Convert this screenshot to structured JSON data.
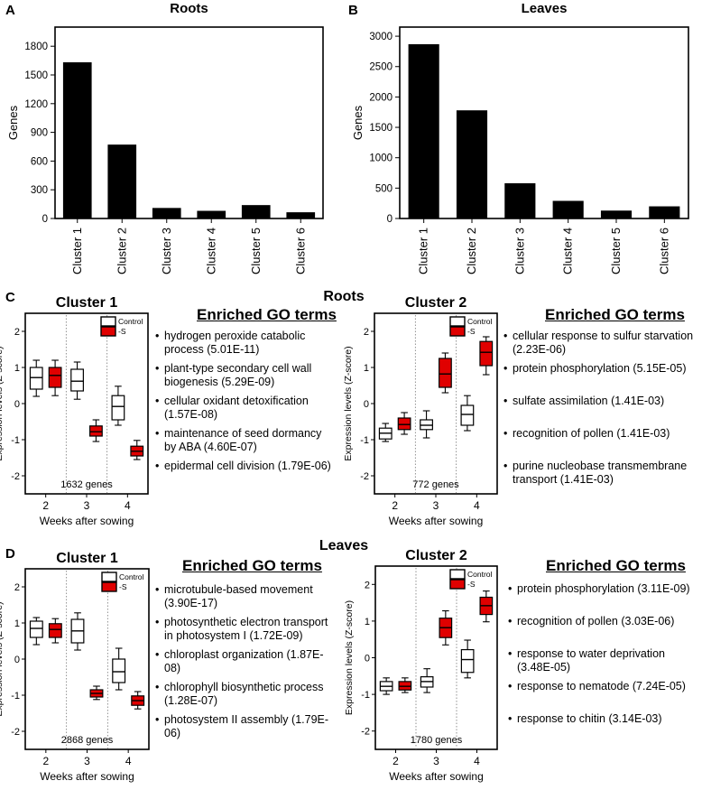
{
  "panels": {
    "A": {
      "letter": "A",
      "title": "Roots",
      "ylabel": "Genes"
    },
    "B": {
      "letter": "B",
      "title": "Leaves",
      "ylabel": "Genes"
    },
    "C": {
      "letter": "C",
      "section_title": "Roots"
    },
    "D": {
      "letter": "D",
      "section_title": "Leaves"
    }
  },
  "chart_data": [
    {
      "id": "A",
      "type": "bar",
      "title": "Roots",
      "ylabel": "Genes",
      "xlabel": "",
      "categories": [
        "Cluster 1",
        "Cluster 2",
        "Cluster 3",
        "Cluster 4",
        "Cluster 5",
        "Cluster 6"
      ],
      "values": [
        1632,
        772,
        110,
        80,
        140,
        65
      ],
      "ylim": [
        0,
        2000
      ],
      "yticks": [
        0,
        300,
        600,
        900,
        1200,
        1500,
        1800
      ]
    },
    {
      "id": "B",
      "type": "bar",
      "title": "Leaves",
      "ylabel": "Genes",
      "xlabel": "",
      "categories": [
        "Cluster 1",
        "Cluster 2",
        "Cluster 3",
        "Cluster 4",
        "Cluster 5",
        "Cluster 6"
      ],
      "values": [
        2868,
        1780,
        580,
        290,
        130,
        200
      ],
      "ylim": [
        0,
        3150
      ],
      "yticks": [
        0,
        500,
        1000,
        1500,
        2000,
        2500,
        3000
      ]
    },
    {
      "id": "C1",
      "type": "box",
      "title": "Cluster 1",
      "xlabel": "Weeks after sowing",
      "ylabel": "Expression levels (Z-score)",
      "ylim": [
        -2.5,
        2.5
      ],
      "yticks": [
        -2,
        -1,
        0,
        1,
        2
      ],
      "xticks": [
        "2",
        "3",
        "4"
      ],
      "note": "1632 genes",
      "legend": [
        "Control",
        "-S"
      ],
      "boxes": [
        {
          "week": "2",
          "group": "Control",
          "min": 0.2,
          "q1": 0.4,
          "median": 0.72,
          "q3": 1.0,
          "max": 1.2
        },
        {
          "week": "2",
          "group": "-S",
          "min": 0.22,
          "q1": 0.45,
          "median": 0.78,
          "q3": 1.0,
          "max": 1.2
        },
        {
          "week": "3",
          "group": "Control",
          "min": 0.12,
          "q1": 0.35,
          "median": 0.62,
          "q3": 0.95,
          "max": 1.15
        },
        {
          "week": "3",
          "group": "-S",
          "min": -1.05,
          "q1": -0.9,
          "median": -0.78,
          "q3": -0.62,
          "max": -0.45
        },
        {
          "week": "4",
          "group": "Control",
          "min": -0.6,
          "q1": -0.45,
          "median": -0.08,
          "q3": 0.22,
          "max": 0.48
        },
        {
          "week": "4",
          "group": "-S",
          "min": -1.55,
          "q1": -1.45,
          "median": -1.32,
          "q3": -1.18,
          "max": -1.02
        }
      ],
      "go_title": "Enriched GO terms",
      "go_terms": [
        "hydrogen peroxide catabolic process (5.01E-11)",
        "plant-type secondary cell wall biogenesis (5.29E-09)",
        "cellular oxidant detoxification (1.57E-08)",
        "maintenance of seed dormancy by ABA (4.60E-07)",
        "epidermal cell division (1.79E-06)"
      ]
    },
    {
      "id": "C2",
      "type": "box",
      "title": "Cluster 2",
      "xlabel": "Weeks after sowing",
      "ylabel": "Expression levels (Z-score)",
      "ylim": [
        -2.5,
        2.5
      ],
      "yticks": [
        -2,
        -1,
        0,
        1,
        2
      ],
      "xticks": [
        "2",
        "3",
        "4"
      ],
      "note": "772 genes",
      "legend": [
        "Control",
        "-S"
      ],
      "boxes": [
        {
          "week": "2",
          "group": "Control",
          "min": -1.05,
          "q1": -0.98,
          "median": -0.82,
          "q3": -0.68,
          "max": -0.55
        },
        {
          "week": "2",
          "group": "-S",
          "min": -0.85,
          "q1": -0.72,
          "median": -0.58,
          "q3": -0.4,
          "max": -0.25
        },
        {
          "week": "3",
          "group": "Control",
          "min": -0.95,
          "q1": -0.72,
          "median": -0.6,
          "q3": -0.45,
          "max": -0.2
        },
        {
          "week": "3",
          "group": "-S",
          "min": 0.3,
          "q1": 0.45,
          "median": 0.82,
          "q3": 1.25,
          "max": 1.4
        },
        {
          "week": "4",
          "group": "Control",
          "min": -0.75,
          "q1": -0.6,
          "median": -0.3,
          "q3": -0.05,
          "max": 0.22
        },
        {
          "week": "4",
          "group": "-S",
          "min": 0.8,
          "q1": 1.05,
          "median": 1.42,
          "q3": 1.72,
          "max": 1.85
        }
      ],
      "go_title": "Enriched GO terms",
      "go_terms": [
        "cellular response to sulfur starvation (2.23E-06)",
        "protein phosphorylation (5.15E-05)",
        "sulfate assimilation (1.41E-03)",
        "recognition of pollen (1.41E-03)",
        "purine nucleobase transmembrane transport (1.41E-03)"
      ]
    },
    {
      "id": "D1",
      "type": "box",
      "title": "Cluster 1",
      "xlabel": "Weeks after sowing",
      "ylabel": "Expression levels (Z-score)",
      "ylim": [
        -2.5,
        2.5
      ],
      "yticks": [
        -2,
        -1,
        0,
        1,
        2
      ],
      "xticks": [
        "2",
        "3",
        "4"
      ],
      "note": "2868 genes",
      "legend": [
        "Control",
        "-S"
      ],
      "boxes": [
        {
          "week": "2",
          "group": "Control",
          "min": 0.4,
          "q1": 0.6,
          "median": 0.85,
          "q3": 1.05,
          "max": 1.15
        },
        {
          "week": "2",
          "group": "-S",
          "min": 0.45,
          "q1": 0.6,
          "median": 0.82,
          "q3": 0.98,
          "max": 1.12
        },
        {
          "week": "3",
          "group": "Control",
          "min": 0.25,
          "q1": 0.45,
          "median": 0.78,
          "q3": 1.1,
          "max": 1.28
        },
        {
          "week": "3",
          "group": "-S",
          "min": -1.12,
          "q1": -1.05,
          "median": -0.95,
          "q3": -0.85,
          "max": -0.75
        },
        {
          "week": "4",
          "group": "Control",
          "min": -0.85,
          "q1": -0.65,
          "median": -0.35,
          "q3": 0.0,
          "max": 0.3
        },
        {
          "week": "4",
          "group": "-S",
          "min": -1.38,
          "q1": -1.28,
          "median": -1.15,
          "q3": -1.02,
          "max": -0.9
        }
      ],
      "go_title": "Enriched GO terms",
      "go_terms": [
        "microtubule-based movement (3.90E-17)",
        "photosynthetic electron transport in photosystem I (1.72E-09)",
        "chloroplast organization (1.87E-08)",
        "chlorophyll biosynthetic process (1.28E-07)",
        "photosystem II assembly (1.79E-06)"
      ]
    },
    {
      "id": "D2",
      "type": "box",
      "title": "Cluster 2",
      "xlabel": "Weeks after sowing",
      "ylabel": "Expression levels (Z-score)",
      "ylim": [
        -2.5,
        2.5
      ],
      "yticks": [
        -2,
        -1,
        0,
        1,
        2
      ],
      "xticks": [
        "2",
        "3",
        "4"
      ],
      "note": "1780 genes",
      "legend": [
        "Control",
        "-S"
      ],
      "boxes": [
        {
          "week": "2",
          "group": "Control",
          "min": -1.0,
          "q1": -0.9,
          "median": -0.78,
          "q3": -0.65,
          "max": -0.55
        },
        {
          "week": "2",
          "group": "-S",
          "min": -0.95,
          "q1": -0.88,
          "median": -0.78,
          "q3": -0.65,
          "max": -0.55
        },
        {
          "week": "3",
          "group": "Control",
          "min": -0.95,
          "q1": -0.8,
          "median": -0.65,
          "q3": -0.52,
          "max": -0.3
        },
        {
          "week": "3",
          "group": "-S",
          "min": 0.35,
          "q1": 0.55,
          "median": 0.82,
          "q3": 1.08,
          "max": 1.28
        },
        {
          "week": "4",
          "group": "Control",
          "min": -0.55,
          "q1": -0.4,
          "median": -0.05,
          "q3": 0.22,
          "max": 0.48
        },
        {
          "week": "4",
          "group": "-S",
          "min": 0.98,
          "q1": 1.18,
          "median": 1.42,
          "q3": 1.65,
          "max": 1.82
        }
      ],
      "go_title": "Enriched GO terms",
      "go_terms": [
        "protein phosphorylation (3.11E-09)",
        "recognition of pollen (3.03E-06)",
        "response to water deprivation (3.48E-05)",
        "response to nematode (7.24E-05)",
        "response to chitin (3.14E-03)"
      ]
    }
  ],
  "colors": {
    "control_fill": "#ffffff",
    "treatment_fill": "#e00000",
    "bar_fill": "#000000"
  }
}
